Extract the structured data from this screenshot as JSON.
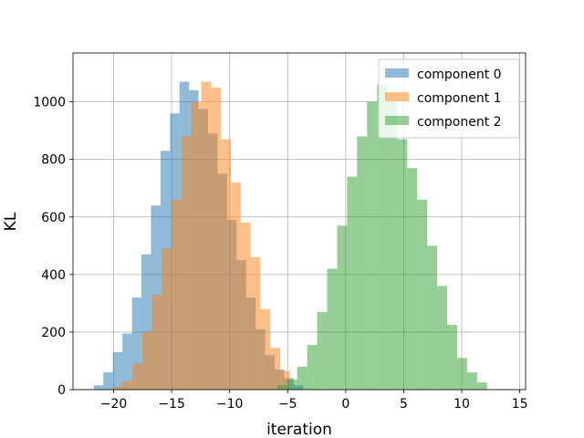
{
  "chart_data": {
    "type": "histogram",
    "title": "",
    "xlabel": "iteration",
    "ylabel": "KL",
    "xlim": [
      -23.5,
      15.5
    ],
    "ylim": [
      0,
      1170
    ],
    "xticks": [
      -20,
      -15,
      -10,
      -5,
      0,
      5,
      10,
      15
    ],
    "yticks": [
      0,
      200,
      400,
      600,
      800,
      1000
    ],
    "grid": true,
    "legend_position": "top-right",
    "bar_alpha": 0.5,
    "series": [
      {
        "name": "component 0",
        "color": "#1f77b4",
        "bins": [
          -21.7,
          -20.88,
          -20.06,
          -19.24,
          -18.42,
          -17.6,
          -16.78,
          -15.96,
          -15.14,
          -14.32,
          -13.5,
          -12.68,
          -11.86,
          -11.04,
          -10.22,
          -9.4,
          -8.58,
          -7.76,
          -6.94,
          -6.12,
          -5.3,
          -4.48,
          -3.66
        ],
        "values": [
          15,
          60,
          130,
          195,
          320,
          470,
          640,
          830,
          960,
          1070,
          1040,
          975,
          890,
          750,
          590,
          450,
          320,
          210,
          120,
          70,
          40,
          15,
          8
        ]
      },
      {
        "name": "component 1",
        "color": "#ff7f0e",
        "bins": [
          -20.1,
          -19.25,
          -18.4,
          -17.55,
          -16.7,
          -15.85,
          -15.0,
          -14.15,
          -13.3,
          -12.45,
          -11.6,
          -10.75,
          -9.9,
          -9.05,
          -8.2,
          -7.35,
          -6.5,
          -5.65,
          -4.8
        ],
        "values": [
          10,
          30,
          90,
          200,
          330,
          490,
          660,
          880,
          1000,
          1070,
          1050,
          870,
          720,
          580,
          460,
          280,
          145,
          65,
          20
        ]
      },
      {
        "name": "component 2",
        "color": "#2ca02c",
        "bins": [
          -5.9,
          -5.04,
          -4.18,
          -3.32,
          -2.46,
          -1.6,
          -0.74,
          0.12,
          0.98,
          1.84,
          2.7,
          3.58,
          4.44,
          5.3,
          6.16,
          7.02,
          7.88,
          8.74,
          9.6,
          10.46,
          11.32,
          12.18
        ],
        "values": [
          15,
          35,
          80,
          155,
          270,
          420,
          570,
          740,
          880,
          1000,
          1060,
          1000,
          870,
          770,
          660,
          500,
          360,
          225,
          110,
          60,
          25,
          8
        ]
      }
    ]
  }
}
